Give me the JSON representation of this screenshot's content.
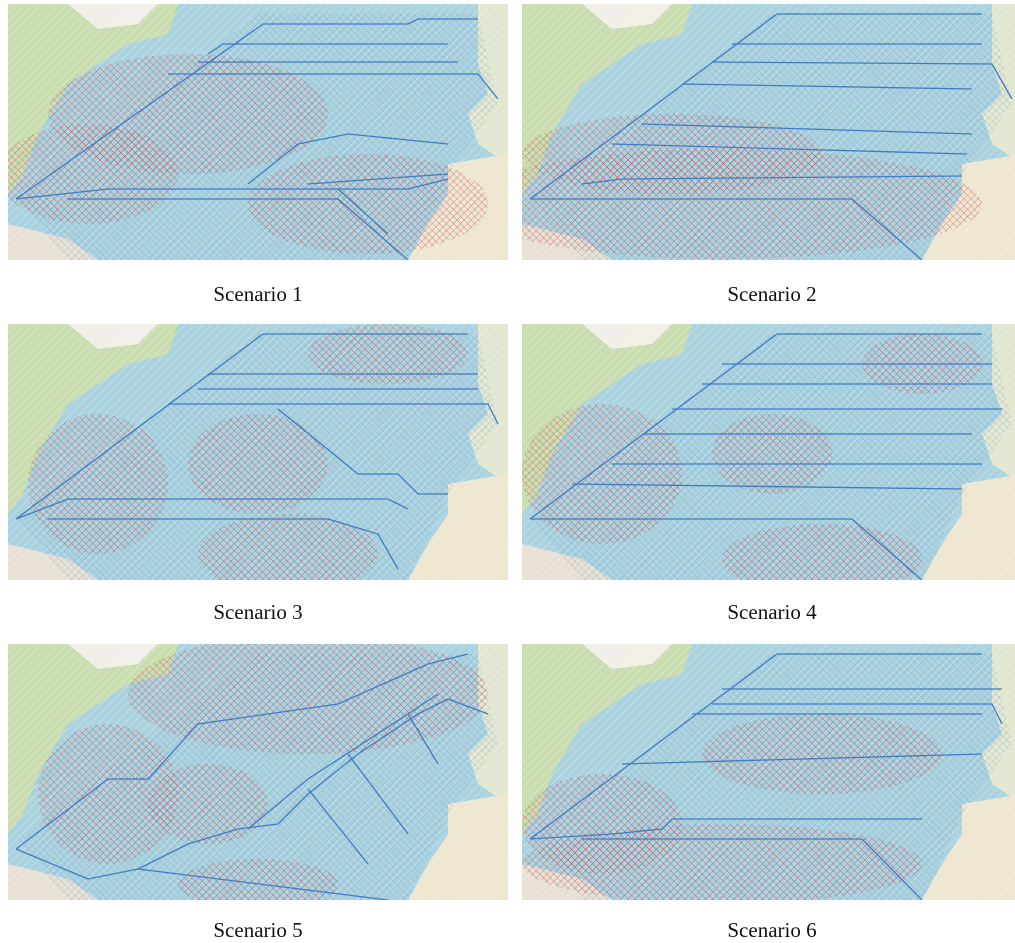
{
  "panels": [
    {
      "caption": "Scenario 1"
    },
    {
      "caption": "Scenario 2"
    },
    {
      "caption": "Scenario 3"
    },
    {
      "caption": "Scenario 4"
    },
    {
      "caption": "Scenario 5"
    },
    {
      "caption": "Scenario 6"
    }
  ]
}
